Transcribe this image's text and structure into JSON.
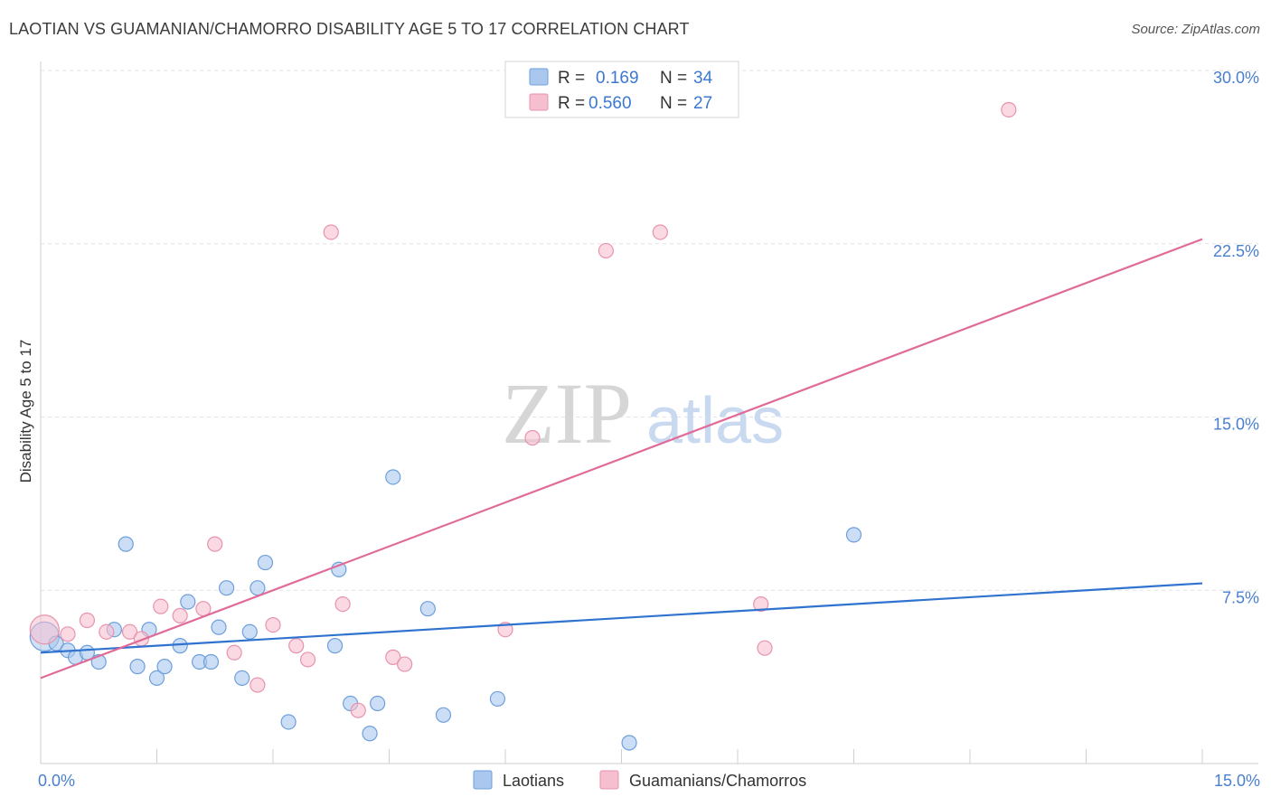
{
  "title": "LAOTIAN VS GUAMANIAN/CHAMORRO DISABILITY AGE 5 TO 17 CORRELATION CHART",
  "source": "Source: ZipAtlas.com",
  "watermark": {
    "zip": "ZIP",
    "atlas": "atlas"
  },
  "colors": {
    "blue_fill": "#aac8ee",
    "blue_stroke": "#6d9fdd",
    "blue_line": "#2f73cf",
    "pink_fill": "#f6bfcf",
    "pink_stroke": "#e893ad",
    "pink_line": "#e06b98",
    "tick_text": "#4a7fd0",
    "grid": "#e3e3e3"
  },
  "legend": {
    "rows": [
      {
        "r_label": "R =",
        "r_value": "0.169",
        "n_label": "N =",
        "n_value": "34"
      },
      {
        "r_label": "R =",
        "r_value": "0.560",
        "n_label": "N =",
        "n_value": "27"
      }
    ]
  },
  "chart_data": {
    "type": "scatter",
    "title": "LAOTIAN VS GUAMANIAN/CHAMORRO DISABILITY AGE 5 TO 17 CORRELATION CHART",
    "xlabel": "",
    "ylabel": "Disability Age 5 to 17",
    "xlim": [
      0,
      15
    ],
    "ylim": [
      0,
      30
    ],
    "x_ticks": [
      0,
      15
    ],
    "x_tick_labels": [
      "0.0%",
      "15.0%"
    ],
    "y_ticks": [
      7.5,
      15,
      22.5,
      30
    ],
    "y_tick_labels": [
      "7.5%",
      "15.0%",
      "22.5%",
      "30.0%"
    ],
    "grid": true,
    "legend_position": "top-center",
    "series": [
      {
        "name": "Laotians",
        "color": "#aac8ee",
        "points": [
          [
            0.05,
            5.5
          ],
          [
            0.2,
            5.2
          ],
          [
            0.35,
            4.9
          ],
          [
            0.45,
            4.6
          ],
          [
            0.6,
            4.8
          ],
          [
            0.75,
            4.4
          ],
          [
            0.95,
            5.8
          ],
          [
            1.1,
            9.5
          ],
          [
            1.25,
            4.2
          ],
          [
            1.4,
            5.8
          ],
          [
            1.5,
            3.7
          ],
          [
            1.6,
            4.2
          ],
          [
            1.8,
            5.1
          ],
          [
            1.9,
            7.0
          ],
          [
            2.05,
            4.4
          ],
          [
            2.2,
            4.4
          ],
          [
            2.3,
            5.9
          ],
          [
            2.4,
            7.6
          ],
          [
            2.6,
            3.7
          ],
          [
            2.7,
            5.7
          ],
          [
            2.8,
            7.6
          ],
          [
            2.9,
            8.7
          ],
          [
            3.2,
            1.8
          ],
          [
            3.8,
            5.1
          ],
          [
            3.85,
            8.4
          ],
          [
            4.0,
            2.6
          ],
          [
            4.25,
            1.3
          ],
          [
            4.35,
            2.6
          ],
          [
            4.55,
            12.4
          ],
          [
            5.0,
            6.7
          ],
          [
            5.2,
            2.1
          ],
          [
            5.9,
            2.8
          ],
          [
            7.6,
            0.9
          ],
          [
            10.5,
            9.9
          ]
        ],
        "trend": {
          "x": [
            0,
            15
          ],
          "y": [
            4.8,
            7.8
          ]
        }
      },
      {
        "name": "Guamanians/Chamorros",
        "color": "#f6bfcf",
        "points": [
          [
            0.05,
            5.8
          ],
          [
            0.35,
            5.6
          ],
          [
            0.6,
            6.2
          ],
          [
            0.85,
            5.7
          ],
          [
            1.15,
            5.7
          ],
          [
            1.3,
            5.4
          ],
          [
            1.55,
            6.8
          ],
          [
            1.8,
            6.4
          ],
          [
            2.1,
            6.7
          ],
          [
            2.25,
            9.5
          ],
          [
            2.5,
            4.8
          ],
          [
            2.8,
            3.4
          ],
          [
            3.0,
            6.0
          ],
          [
            3.3,
            5.1
          ],
          [
            3.45,
            4.5
          ],
          [
            3.75,
            23.0
          ],
          [
            3.9,
            6.9
          ],
          [
            4.1,
            2.3
          ],
          [
            4.55,
            4.6
          ],
          [
            4.7,
            4.3
          ],
          [
            6.0,
            5.8
          ],
          [
            6.35,
            14.1
          ],
          [
            7.3,
            22.2
          ],
          [
            8.0,
            23.0
          ],
          [
            9.3,
            6.9
          ],
          [
            9.35,
            5.0
          ],
          [
            12.5,
            28.3
          ]
        ],
        "trend": {
          "x": [
            0,
            15
          ],
          "y": [
            3.7,
            22.7
          ]
        }
      }
    ]
  },
  "bottom_legend": {
    "items": [
      {
        "label": "Laotians"
      },
      {
        "label": "Guamanians/Chamorros"
      }
    ]
  }
}
